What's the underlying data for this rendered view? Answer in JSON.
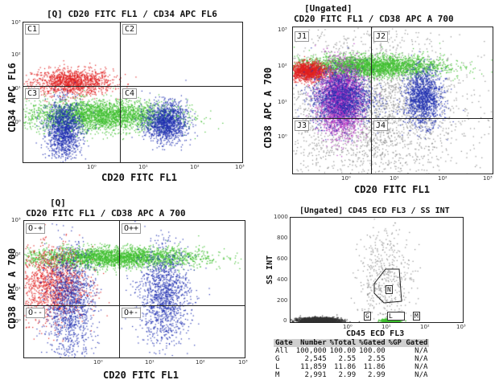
{
  "chart_data": [
    {
      "type": "scatter",
      "title": "[Q] CD20 FITC FL1 / CD34 APC FL6",
      "xlabel": "CD20 FITC FL1",
      "ylabel": "CD34 APC FL6",
      "x_scale": "log",
      "y_scale": "log",
      "xlim": [
        0.1,
        1000
      ],
      "ylim": [
        0.1,
        1000
      ],
      "x_ticks": [
        "10⁰",
        "10¹",
        "10²",
        "10³"
      ],
      "y_ticks": [
        "10³",
        "10²",
        "10¹",
        "10⁰"
      ],
      "quadrants": [
        "C1",
        "C2",
        "C3",
        "C4"
      ],
      "quadrant_split": {
        "x": 3,
        "y": 10
      },
      "clusters": [
        {
          "color": "#e02020",
          "x": [
            0.2,
            3
          ],
          "y": [
            10,
            40
          ],
          "density": "medium"
        },
        {
          "color": "#3fbf2f",
          "x": [
            0.2,
            30
          ],
          "y": [
            1,
            5
          ],
          "density": "high"
        },
        {
          "color": "#1f2fb0",
          "x": [
            0.3,
            1
          ],
          "y": [
            0.2,
            4
          ],
          "density": "medium"
        },
        {
          "color": "#1f2fb0",
          "x": [
            20,
            80
          ],
          "y": [
            0.5,
            4
          ],
          "density": "medium"
        }
      ]
    },
    {
      "type": "scatter",
      "title_prefix": "[Ungated]",
      "title": "CD20 FITC FL1 / CD38 APC A 700",
      "xlabel": "CD20 FITC FL1",
      "ylabel": "CD38 APC A 700",
      "x_scale": "log",
      "y_scale": "log",
      "xlim": [
        0.1,
        1000
      ],
      "ylim": [
        0.1,
        1000
      ],
      "x_ticks": [
        "10⁰",
        "10¹",
        "10²",
        "10³"
      ],
      "y_ticks": [
        "10³",
        "10²",
        "10¹",
        "10⁰"
      ],
      "quadrants": [
        "J1",
        "J2",
        "J3",
        "J4"
      ],
      "quadrant_split": {
        "x": 3,
        "y": 3
      },
      "clusters": [
        {
          "color": "#8a8a8a",
          "x": [
            0.1,
            100
          ],
          "y": [
            0.1,
            300
          ],
          "density": "high"
        },
        {
          "color": "#3fbf2f",
          "x": [
            0.2,
            50
          ],
          "y": [
            50,
            150
          ],
          "density": "high"
        },
        {
          "color": "#e02020",
          "x": [
            0.1,
            0.4
          ],
          "y": [
            40,
            100
          ],
          "density": "medium"
        },
        {
          "color": "#b030c0",
          "x": [
            0.4,
            2
          ],
          "y": [
            2,
            60
          ],
          "density": "high"
        },
        {
          "color": "#1f2fb0",
          "x": [
            0.3,
            3
          ],
          "y": [
            3,
            50
          ],
          "density": "medium"
        },
        {
          "color": "#1f2fb0",
          "x": [
            20,
            80
          ],
          "y": [
            3,
            50
          ],
          "density": "medium"
        }
      ]
    },
    {
      "type": "scatter",
      "title_prefix": "[Q]",
      "title": "CD20 FITC FL1 / CD38 APC A 700",
      "xlabel": "CD20 FITC FL1",
      "ylabel": "CD38 APC A 700",
      "x_scale": "log",
      "y_scale": "log",
      "xlim": [
        0.1,
        1000
      ],
      "ylim": [
        0.1,
        1000
      ],
      "x_ticks": [
        "10⁰",
        "10¹",
        "10²",
        "10³"
      ],
      "y_ticks": [
        "10³",
        "10²",
        "10¹",
        "10⁰"
      ],
      "quadrants": [
        "O-+",
        "O++",
        "O--",
        "O+-"
      ],
      "quadrant_split": {
        "x": 3,
        "y": 3
      },
      "clusters": [
        {
          "color": "#3fbf2f",
          "x": [
            0.2,
            80
          ],
          "y": [
            50,
            150
          ],
          "density": "high"
        },
        {
          "color": "#e02020",
          "x": [
            0.1,
            1
          ],
          "y": [
            2,
            100
          ],
          "density": "medium"
        },
        {
          "color": "#1f2fb0",
          "x": [
            0.3,
            1.5
          ],
          "y": [
            0.2,
            80
          ],
          "density": "medium"
        },
        {
          "color": "#1f2fb0",
          "x": [
            15,
            80
          ],
          "y": [
            0.5,
            80
          ],
          "density": "medium"
        }
      ]
    },
    {
      "type": "scatter",
      "title": "[Ungated] CD45 ECD FL3 / SS INT",
      "xlabel": "CD45 ECD FL3",
      "ylabel": "SS INT",
      "x_scale": "log",
      "y_scale": "linear",
      "xlim": [
        0.1,
        1000
      ],
      "ylim": [
        0,
        1000
      ],
      "x_ticks": [
        "10⁰",
        "10¹",
        "10²",
        "10³"
      ],
      "y_ticks": [
        "1000",
        "800",
        "600",
        "400",
        "200",
        "0"
      ],
      "gates": [
        "N",
        "G",
        "L",
        "M"
      ],
      "clusters": [
        {
          "color": "#333333",
          "x": [
            0.2,
            1
          ],
          "y": [
            0,
            40
          ],
          "density": "high"
        },
        {
          "color": "#8a8a8a",
          "x": [
            5,
            50
          ],
          "y": [
            0,
            800
          ],
          "density": "low"
        },
        {
          "color": "#3fbf2f",
          "x": [
            15,
            30
          ],
          "y": [
            0,
            30
          ],
          "density": "medium"
        }
      ]
    }
  ],
  "stats_table": {
    "headers": [
      "Gate",
      "Number",
      "%Total",
      "%Gated",
      "%GP Gated"
    ],
    "rows": [
      [
        "All",
        "100,000",
        "100.00",
        "100.00",
        "N/A"
      ],
      [
        "G",
        "2,545",
        "2.55",
        "2.55",
        "N/A"
      ],
      [
        "L",
        "11,859",
        "11.86",
        "11.86",
        "N/A"
      ],
      [
        "M",
        "2,991",
        "2.99",
        "2.99",
        "N/A"
      ]
    ]
  }
}
